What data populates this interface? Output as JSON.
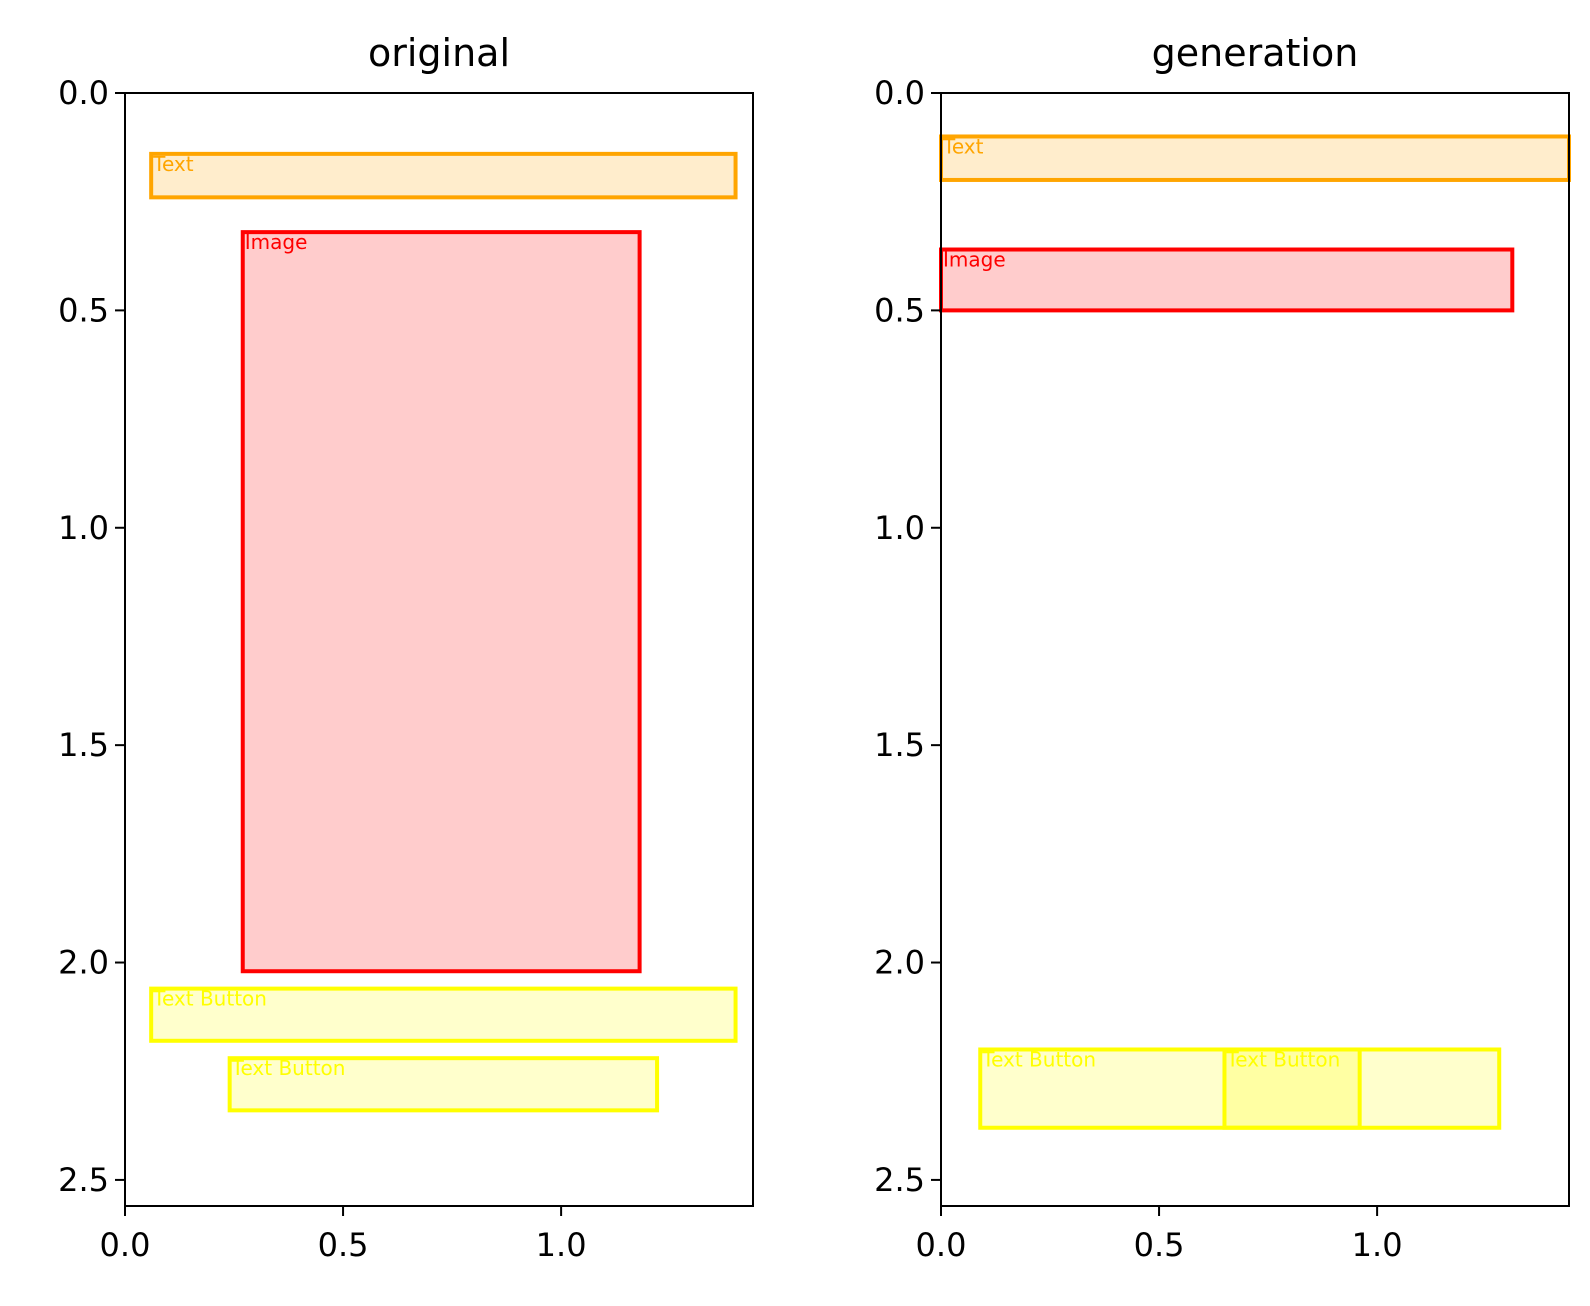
{
  "chart_data": [
    {
      "type": "bbox-overlay",
      "title": "original",
      "xlim": [
        0,
        1.44
      ],
      "ylim": [
        2.56,
        0
      ],
      "x_ticks": [
        0.0,
        0.5,
        1.0
      ],
      "x_tick_labels": [
        "0.0",
        "0.5",
        "1.0"
      ],
      "y_ticks": [
        0.0,
        0.5,
        1.0,
        1.5,
        2.0,
        2.5
      ],
      "y_tick_labels": [
        "0.0",
        "0.5",
        "1.0",
        "1.5",
        "2.0",
        "2.5"
      ],
      "boxes": [
        {
          "label": "Text",
          "x0": 0.06,
          "y0": 0.14,
          "x1": 1.4,
          "y1": 0.24,
          "stroke": "#FFA500",
          "fill": "#FFA500"
        },
        {
          "label": "Image",
          "x0": 0.27,
          "y0": 0.32,
          "x1": 1.18,
          "y1": 2.02,
          "stroke": "#FF0000",
          "fill": "#FF0000"
        },
        {
          "label": "Text Button",
          "x0": 0.06,
          "y0": 2.06,
          "x1": 1.4,
          "y1": 2.18,
          "stroke": "#FFFF00",
          "fill": "#FFFF00"
        },
        {
          "label": "Text Button",
          "x0": 0.24,
          "y0": 2.22,
          "x1": 1.22,
          "y1": 2.34,
          "stroke": "#FFFF00",
          "fill": "#FFFF00"
        }
      ]
    },
    {
      "type": "bbox-overlay",
      "title": "generation",
      "xlim": [
        0,
        1.44
      ],
      "ylim": [
        2.56,
        0
      ],
      "x_ticks": [
        0.0,
        0.5,
        1.0
      ],
      "x_tick_labels": [
        "0.0",
        "0.5",
        "1.0"
      ],
      "y_ticks": [
        0.0,
        0.5,
        1.0,
        1.5,
        2.0,
        2.5
      ],
      "y_tick_labels": [
        "0.0",
        "0.5",
        "1.0",
        "1.5",
        "2.0",
        "2.5"
      ],
      "boxes": [
        {
          "label": "Text",
          "x0": 0.0,
          "y0": 0.1,
          "x1": 1.44,
          "y1": 0.2,
          "stroke": "#FFA500",
          "fill": "#FFA500"
        },
        {
          "label": "Image",
          "x0": 0.0,
          "y0": 0.36,
          "x1": 1.31,
          "y1": 0.5,
          "stroke": "#FF0000",
          "fill": "#FF0000"
        },
        {
          "label": "Text Button",
          "x0": 0.09,
          "y0": 2.2,
          "x1": 0.96,
          "y1": 2.38,
          "stroke": "#FFFF00",
          "fill": "#FFFF00"
        },
        {
          "label": "Text Button",
          "x0": 0.65,
          "y0": 2.2,
          "x1": 1.28,
          "y1": 2.38,
          "stroke": "#FFFF00",
          "fill": "#FFFF00"
        }
      ]
    }
  ]
}
